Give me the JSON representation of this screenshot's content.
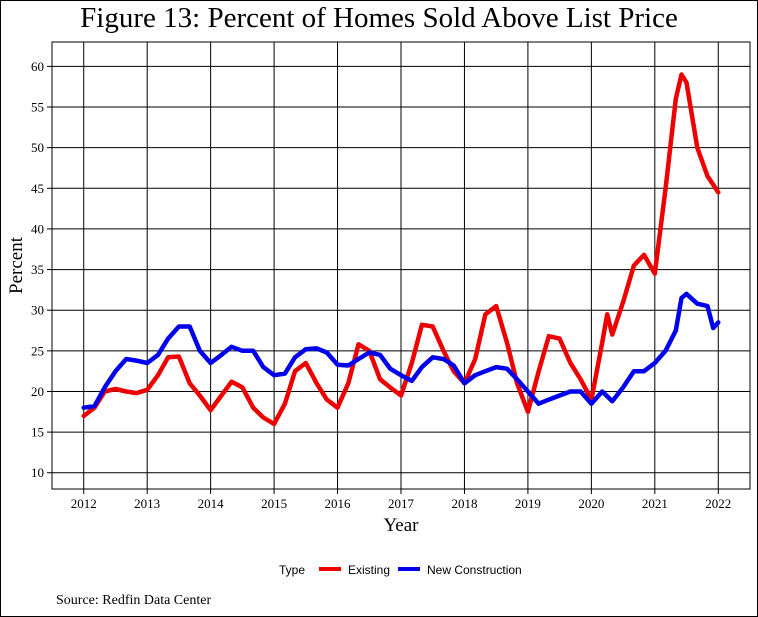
{
  "title": "Figure 13: Percent of Homes Sold Above List Price",
  "source": "Source: Redfin Data Center",
  "colors": {
    "existing": "#ee0000",
    "new_construction": "#0000ee",
    "grid": "#000000"
  },
  "chart_data": {
    "type": "line",
    "xlabel": "Year",
    "ylabel": "Percent",
    "xlim": [
      2011.5,
      2022.5
    ],
    "ylim": [
      8,
      63
    ],
    "x_ticks": [
      2012,
      2013,
      2014,
      2015,
      2016,
      2017,
      2018,
      2019,
      2020,
      2021,
      2022
    ],
    "y_ticks": [
      10,
      15,
      20,
      25,
      30,
      35,
      40,
      45,
      50,
      55,
      60
    ],
    "grid": true,
    "legend": {
      "title": "Type",
      "position": "bottom"
    },
    "series": [
      {
        "name": "Existing",
        "color": "#ee0000",
        "x": [
          2012.0,
          2012.17,
          2012.33,
          2012.5,
          2012.67,
          2012.83,
          2013.0,
          2013.17,
          2013.33,
          2013.5,
          2013.67,
          2013.83,
          2014.0,
          2014.17,
          2014.33,
          2014.5,
          2014.67,
          2014.83,
          2015.0,
          2015.17,
          2015.33,
          2015.5,
          2015.67,
          2015.83,
          2016.0,
          2016.17,
          2016.33,
          2016.5,
          2016.67,
          2016.83,
          2017.0,
          2017.17,
          2017.33,
          2017.5,
          2017.67,
          2017.83,
          2018.0,
          2018.17,
          2018.33,
          2018.5,
          2018.67,
          2018.83,
          2019.0,
          2019.17,
          2019.33,
          2019.5,
          2019.67,
          2019.83,
          2020.0,
          2020.17,
          2020.25,
          2020.33,
          2020.5,
          2020.67,
          2020.83,
          2021.0,
          2021.17,
          2021.33,
          2021.42,
          2021.5,
          2021.67,
          2021.83,
          2022.0
        ],
        "y": [
          17.0,
          18.0,
          20.0,
          20.3,
          20.0,
          19.8,
          20.2,
          22.0,
          24.2,
          24.3,
          21.0,
          19.5,
          17.7,
          19.5,
          21.2,
          20.5,
          18.0,
          16.8,
          16.0,
          18.5,
          22.5,
          23.5,
          21.0,
          19.0,
          18.0,
          21.0,
          25.8,
          25.0,
          21.5,
          20.5,
          19.5,
          23.5,
          28.2,
          28.0,
          25.0,
          22.5,
          21.0,
          24.0,
          29.5,
          30.5,
          26.0,
          21.0,
          17.5,
          22.5,
          26.8,
          26.5,
          23.5,
          21.5,
          19.0,
          26.0,
          29.5,
          27.0,
          31.0,
          35.5,
          36.8,
          34.5,
          45.0,
          56.0,
          59.0,
          58.0,
          50.0,
          46.5,
          44.5
        ]
      },
      {
        "name": "New Construction",
        "color": "#0000ee",
        "x": [
          2012.0,
          2012.17,
          2012.33,
          2012.5,
          2012.67,
          2012.83,
          2013.0,
          2013.17,
          2013.33,
          2013.5,
          2013.67,
          2013.83,
          2014.0,
          2014.17,
          2014.33,
          2014.5,
          2014.67,
          2014.83,
          2015.0,
          2015.17,
          2015.33,
          2015.5,
          2015.67,
          2015.83,
          2016.0,
          2016.17,
          2016.33,
          2016.5,
          2016.67,
          2016.83,
          2017.0,
          2017.17,
          2017.33,
          2017.5,
          2017.67,
          2017.83,
          2018.0,
          2018.17,
          2018.33,
          2018.5,
          2018.67,
          2018.83,
          2019.0,
          2019.17,
          2019.33,
          2019.5,
          2019.67,
          2019.83,
          2020.0,
          2020.17,
          2020.33,
          2020.5,
          2020.67,
          2020.83,
          2021.0,
          2021.17,
          2021.33,
          2021.42,
          2021.5,
          2021.67,
          2021.83,
          2021.92,
          2022.0
        ],
        "y": [
          18.0,
          18.2,
          20.5,
          22.5,
          24.0,
          23.8,
          23.5,
          24.5,
          26.5,
          28.0,
          28.0,
          25.0,
          23.5,
          24.5,
          25.5,
          25.0,
          25.0,
          23.0,
          22.0,
          22.2,
          24.2,
          25.2,
          25.3,
          24.8,
          23.3,
          23.2,
          24.0,
          24.8,
          24.5,
          22.8,
          22.0,
          21.3,
          23.0,
          24.2,
          24.0,
          23.2,
          21.0,
          22.0,
          22.5,
          23.0,
          22.8,
          21.5,
          20.0,
          18.5,
          19.0,
          19.5,
          20.0,
          20.0,
          18.5,
          20.0,
          18.8,
          20.5,
          22.5,
          22.5,
          23.5,
          25.0,
          27.5,
          31.5,
          32.0,
          30.8,
          30.5,
          27.8,
          28.5
        ]
      }
    ]
  }
}
